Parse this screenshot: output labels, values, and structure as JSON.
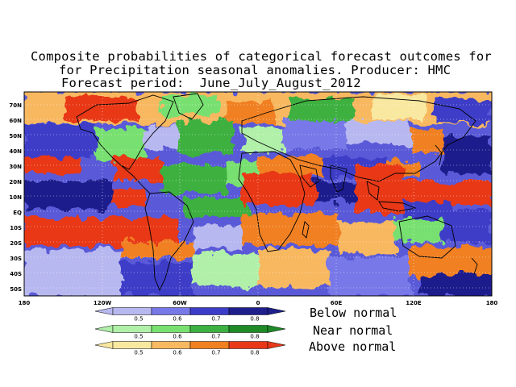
{
  "title": {
    "line1": "Composite probabilities of categorical forecast outcomes for",
    "line2": "for Precipitation seasonal anomalies. Producer: HMC",
    "line3": "Forecast period:  June_July_August_2012"
  },
  "map": {
    "lat_labels": [
      "70N",
      "60N",
      "50N",
      "40N",
      "30N",
      "20N",
      "10N",
      "EQ",
      "10S",
      "20S",
      "30S",
      "40S",
      "50S"
    ],
    "lon_labels": [
      "180",
      "120W",
      "60W",
      "0",
      "60E",
      "120E",
      "180"
    ],
    "colors": {
      "ocean_bg": "#4a4ad0",
      "land_outline": "#000000",
      "grid": "#ffffff"
    }
  },
  "legend": {
    "tick_labels": [
      "0.5",
      "0.6",
      "0.7",
      "0.8"
    ],
    "categories": [
      {
        "label": "Below normal",
        "colors": [
          "#b8b8f0",
          "#7878e8",
          "#3c3cc8",
          "#1e1e8c"
        ]
      },
      {
        "label": "Near normal",
        "colors": [
          "#b0f0a8",
          "#78e070",
          "#3cb040",
          "#1e8a28"
        ]
      },
      {
        "label": "Above normal",
        "colors": [
          "#f8e8a0",
          "#f8b860",
          "#f08020",
          "#e83818"
        ]
      }
    ]
  }
}
